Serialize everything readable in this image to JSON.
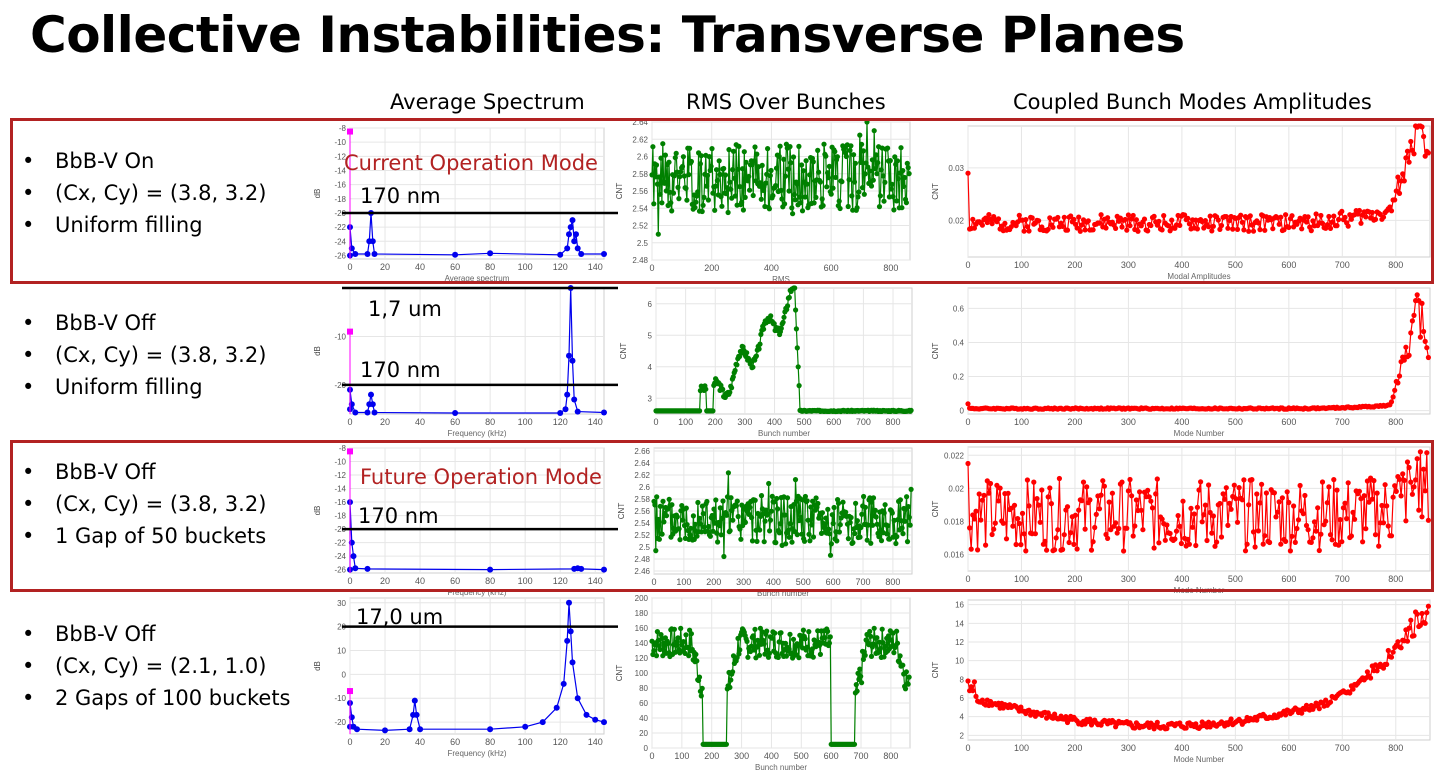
{
  "slide": {
    "title": "Collective Instabilities: Transverse Planes",
    "column_headers": [
      "Average Spectrum",
      "RMS Over Bunches",
      "Coupled Bunch Modes Amplitudes"
    ]
  },
  "rows": [
    {
      "bullets": [
        "BbB-V On",
        "(Cx, Cy) = (3.8, 3.2)",
        "Uniform filling"
      ],
      "mode_label": "Current Operation Mode",
      "spectrum_lines": [
        "170 nm"
      ]
    },
    {
      "bullets": [
        "BbB-V Off",
        "(Cx, Cy) = (3.8, 3.2)",
        "Uniform filling"
      ],
      "mode_label": "",
      "spectrum_lines": [
        "1,7 um",
        "170 nm"
      ]
    },
    {
      "bullets": [
        "BbB-V Off",
        "(Cx, Cy) = (3.8, 3.2)",
        "1 Gap of 50 buckets"
      ],
      "mode_label": "Future Operation Mode",
      "spectrum_lines": [
        "170 nm"
      ]
    },
    {
      "bullets": [
        "BbB-V Off",
        "(Cx, Cy) = (2.1, 1.0)",
        "2 Gaps of 100 buckets"
      ],
      "mode_label": "",
      "spectrum_lines": [
        "17,0 um"
      ]
    }
  ],
  "colors": {
    "spectrum": "#0000ee",
    "rms": "#008000",
    "modes": "#ff0000",
    "marker": "#ff00ff",
    "highlight": "#b22222",
    "mode_label": "#b22222"
  },
  "chart_data": [
    {
      "id": "spectrum-1",
      "type": "line",
      "xlabel": "Average spectrum",
      "ylabel": "dB",
      "xlim": [
        0,
        145
      ],
      "ylim": [
        -26.5,
        -8
      ],
      "xticks": [
        0,
        20,
        40,
        60,
        80,
        100,
        120,
        140
      ],
      "yticks": [
        -8,
        -10,
        -12,
        -14,
        -16,
        -18,
        -20,
        -22,
        -24,
        -26
      ],
      "reference_line_y": [
        -20
      ],
      "points": [
        [
          0,
          -26
        ],
        [
          0,
          -22
        ],
        [
          1,
          -25
        ],
        [
          3,
          -25.8
        ],
        [
          10,
          -25.8
        ],
        [
          11,
          -24
        ],
        [
          12,
          -20
        ],
        [
          13,
          -24
        ],
        [
          14,
          -25.8
        ],
        [
          60,
          -25.9
        ],
        [
          80,
          -25.7
        ],
        [
          120,
          -25.9
        ],
        [
          124,
          -25
        ],
        [
          125,
          -23
        ],
        [
          126,
          -22
        ],
        [
          127,
          -21
        ],
        [
          128,
          -24
        ],
        [
          129,
          -23
        ],
        [
          130,
          -25
        ],
        [
          132,
          -25.8
        ],
        [
          145,
          -25.8
        ]
      ],
      "marker": {
        "x": 0,
        "y": -8.5
      }
    },
    {
      "id": "rms-1",
      "type": "line",
      "xlabel": "RMS",
      "ylabel": "CNT",
      "xlim": [
        0,
        864
      ],
      "ylim": [
        2.48,
        2.64
      ],
      "xticks": [
        0,
        200,
        400,
        600,
        800
      ],
      "yticks": [
        2.48,
        2.5,
        2.52,
        2.54,
        2.56,
        2.58,
        2.6,
        2.62,
        2.64
      ],
      "pattern": "noise",
      "params": {
        "base": 2.575,
        "amp": 0.04,
        "seed": 1
      }
    },
    {
      "id": "modes-1",
      "type": "line",
      "xlabel": "Modal Amplitudes",
      "ylabel": "CNT",
      "xlim": [
        0,
        864
      ],
      "ylim": [
        0.013,
        0.038
      ],
      "xticks": [
        0,
        100,
        200,
        300,
        400,
        500,
        600,
        700,
        800
      ],
      "yticks": [
        0.02,
        0.03
      ],
      "pattern": "modes",
      "params": {
        "base": 0.0195,
        "noise": 0.0016,
        "first": 0.029,
        "rise": 0.004,
        "peak": 0.036,
        "seed": 2
      }
    },
    {
      "id": "spectrum-2",
      "type": "line",
      "xlabel": "Frequency (kHz)",
      "ylabel": "dB",
      "xlim": [
        0,
        145
      ],
      "ylim": [
        -26,
        0
      ],
      "xticks": [
        0,
        20,
        40,
        60,
        80,
        100,
        120,
        140
      ],
      "yticks": [
        -10,
        -20
      ],
      "reference_line_y": [
        0,
        -20
      ],
      "points": [
        [
          0,
          -25
        ],
        [
          0,
          -21
        ],
        [
          1,
          -24
        ],
        [
          3,
          -25.7
        ],
        [
          10,
          -25.7
        ],
        [
          11,
          -24
        ],
        [
          12,
          -22
        ],
        [
          13,
          -24
        ],
        [
          14,
          -25.7
        ],
        [
          60,
          -25.8
        ],
        [
          120,
          -25.8
        ],
        [
          123,
          -25
        ],
        [
          124,
          -22
        ],
        [
          125,
          -14
        ],
        [
          126,
          0
        ],
        [
          127,
          -15
        ],
        [
          128,
          -23
        ],
        [
          130,
          -25.5
        ],
        [
          145,
          -25.7
        ]
      ],
      "marker": {
        "x": 0,
        "y": -9
      }
    },
    {
      "id": "rms-2",
      "type": "line",
      "xlabel": "Bunch number",
      "ylabel": "CNT",
      "xlim": [
        0,
        864
      ],
      "ylim": [
        2.5,
        6.5
      ],
      "xticks": [
        0,
        100,
        200,
        300,
        400,
        500,
        600,
        700,
        800
      ],
      "yticks": [
        3,
        4,
        5,
        6
      ],
      "pattern": "ramp",
      "params": {
        "seed": 3
      }
    },
    {
      "id": "modes-2",
      "type": "line",
      "xlabel": "Mode Number",
      "ylabel": "CNT",
      "xlim": [
        0,
        864
      ],
      "ylim": [
        -0.02,
        0.72
      ],
      "xticks": [
        0,
        100,
        200,
        300,
        400,
        500,
        600,
        700,
        800
      ],
      "yticks": [
        0,
        0.2,
        0.4,
        0.6
      ],
      "pattern": "modes",
      "params": {
        "base": 0.012,
        "noise": 0.004,
        "first": 0.04,
        "rise": 0.03,
        "peak": 0.7,
        "seed": 4
      }
    },
    {
      "id": "spectrum-3",
      "type": "line",
      "xlabel": "Frequency (kHz)",
      "ylabel": "dB",
      "xlim": [
        0,
        145
      ],
      "ylim": [
        -26.5,
        -8
      ],
      "xticks": [
        0,
        20,
        40,
        60,
        80,
        100,
        120,
        140
      ],
      "yticks": [
        -8,
        -10,
        -12,
        -14,
        -16,
        -18,
        -20,
        -22,
        -24,
        -26
      ],
      "reference_line_y": [
        -20
      ],
      "points": [
        [
          0,
          -26
        ],
        [
          0,
          -16
        ],
        [
          1,
          -22
        ],
        [
          2,
          -24
        ],
        [
          3,
          -25.8
        ],
        [
          10,
          -25.9
        ],
        [
          80,
          -26
        ],
        [
          128,
          -25.9
        ],
        [
          130,
          -25.8
        ],
        [
          132,
          -25.9
        ],
        [
          145,
          -26
        ]
      ],
      "marker": {
        "x": 0,
        "y": -8.5
      }
    },
    {
      "id": "rms-3",
      "type": "line",
      "xlabel": "Bunch number",
      "ylabel": "CNT",
      "xlim": [
        0,
        864
      ],
      "ylim": [
        2.455,
        2.665
      ],
      "xticks": [
        0,
        100,
        200,
        300,
        400,
        500,
        600,
        700,
        800
      ],
      "yticks": [
        2.46,
        2.48,
        2.5,
        2.52,
        2.54,
        2.56,
        2.58,
        2.6,
        2.62,
        2.64,
        2.66
      ],
      "pattern": "noise",
      "params": {
        "base": 2.545,
        "amp": 0.04,
        "seed": 5
      }
    },
    {
      "id": "modes-3",
      "type": "line",
      "xlabel": "Mode Number",
      "ylabel": "CNT",
      "xlim": [
        0,
        864
      ],
      "ylim": [
        0.015,
        0.0225
      ],
      "xticks": [
        0,
        100,
        200,
        300,
        400,
        500,
        600,
        700,
        800
      ],
      "yticks": [
        0.016,
        0.018,
        0.02,
        0.022
      ],
      "pattern": "modes",
      "params": {
        "base": 0.0184,
        "noise": 0.0022,
        "first": 0.0215,
        "rise": 0.0004,
        "peak": 0.0205,
        "seed": 6
      }
    },
    {
      "id": "spectrum-4",
      "type": "line",
      "xlabel": "Frequency (kHz)",
      "ylabel": "dB",
      "xlim": [
        0,
        145
      ],
      "ylim": [
        -25,
        32
      ],
      "xticks": [
        0,
        20,
        40,
        60,
        80,
        100,
        120,
        140
      ],
      "yticks": [
        30,
        20,
        10,
        0,
        -10,
        -20
      ],
      "reference_line_y": [
        20
      ],
      "points": [
        [
          0,
          -22
        ],
        [
          0,
          -12
        ],
        [
          1,
          -18
        ],
        [
          2,
          -22
        ],
        [
          4,
          -23
        ],
        [
          20,
          -23.5
        ],
        [
          34,
          -23
        ],
        [
          36,
          -17
        ],
        [
          37,
          -11
        ],
        [
          38,
          -17
        ],
        [
          40,
          -23
        ],
        [
          80,
          -23
        ],
        [
          100,
          -22
        ],
        [
          110,
          -20
        ],
        [
          118,
          -14
        ],
        [
          122,
          -4
        ],
        [
          124,
          14
        ],
        [
          125,
          30
        ],
        [
          126,
          18
        ],
        [
          127,
          5
        ],
        [
          130,
          -10
        ],
        [
          135,
          -17
        ],
        [
          140,
          -19
        ],
        [
          145,
          -20
        ]
      ],
      "marker": {
        "x": 0,
        "y": -7
      }
    },
    {
      "id": "rms-4",
      "type": "line",
      "xlabel": "Bunch number",
      "ylabel": "CNT",
      "xlim": [
        0,
        864
      ],
      "ylim": [
        0,
        200
      ],
      "xticks": [
        0,
        100,
        200,
        300,
        400,
        500,
        600,
        700,
        800
      ],
      "yticks": [
        0,
        20,
        40,
        60,
        80,
        100,
        120,
        140,
        160,
        180,
        200
      ],
      "pattern": "gaps",
      "params": {
        "seed": 7
      }
    },
    {
      "id": "modes-4",
      "type": "line",
      "xlabel": "Mode Number",
      "ylabel": "CNT",
      "xlim": [
        0,
        864
      ],
      "ylim": [
        1.5,
        16.5
      ],
      "xticks": [
        0,
        100,
        200,
        300,
        400,
        500,
        600,
        700,
        800
      ],
      "yticks": [
        2,
        4,
        6,
        8,
        10,
        12,
        14,
        16
      ],
      "pattern": "bowl",
      "params": {
        "seed": 8
      }
    }
  ]
}
